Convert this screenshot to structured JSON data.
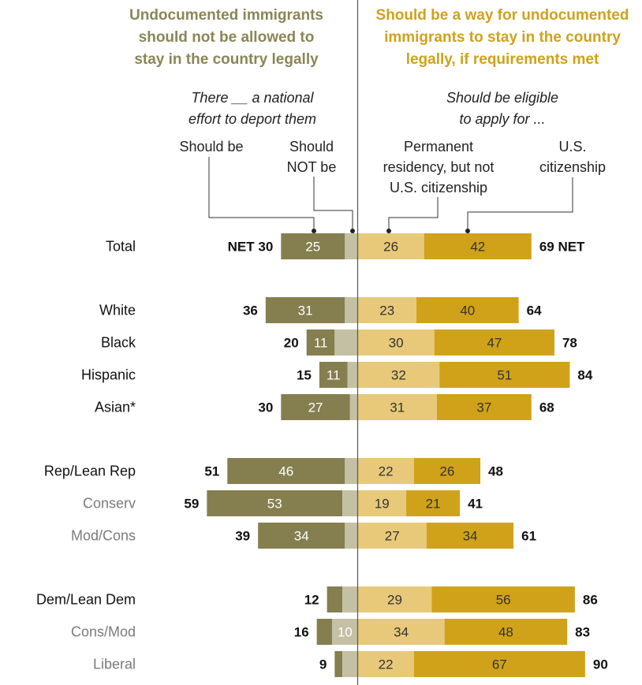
{
  "headers": {
    "left": [
      "Undocumented immigrants",
      "should not be allowed to",
      "stay in the country legally"
    ],
    "right": [
      "Should be a way for undocumented",
      "immigrants to stay in the country",
      "legally, if requirements met"
    ]
  },
  "subheaders": {
    "left": [
      "There __ a national",
      "effort to deport them"
    ],
    "right": [
      "Should be eligible",
      "to apply for ..."
    ]
  },
  "columns": {
    "should_be": [
      "Should be"
    ],
    "should_not_be": [
      "Should",
      "NOT be"
    ],
    "permanent": [
      "Permanent",
      "residency, but not",
      "U.S. citizenship"
    ],
    "citizenship": [
      "U.S.",
      "citizenship"
    ]
  },
  "colors": {
    "deport": "#857e4e",
    "not_deport": "#c4c0a4",
    "permanent": "#e7c979",
    "citizenship": "#cfa219",
    "header_left": "#8a8656",
    "header_right": "#cfa219",
    "sub_label": "#7b7b7b"
  },
  "chart_data": {
    "type": "bar",
    "orientation": "horizontal-diverging",
    "series": [
      {
        "name": "Should be",
        "side": "left"
      },
      {
        "name": "Should NOT be",
        "side": "left"
      },
      {
        "name": "Permanent residency, but not U.S. citizenship",
        "side": "right"
      },
      {
        "name": "U.S. citizenship",
        "side": "right"
      }
    ],
    "rows": [
      {
        "label": "Total",
        "style": "main",
        "deport": 25,
        "not_deport": 5,
        "permanent": 26,
        "citizenship": 42,
        "net_left": "NET 30",
        "net_right": "69 NET",
        "show_deport": true,
        "show_not_deport": false,
        "group": 0
      },
      {
        "label": "White",
        "style": "main",
        "deport": 31,
        "not_deport": 5,
        "permanent": 23,
        "citizenship": 40,
        "net_left": "36",
        "net_right": "64",
        "show_deport": true,
        "show_not_deport": false,
        "group": 1
      },
      {
        "label": "Black",
        "style": "main",
        "deport": 11,
        "not_deport": 9,
        "permanent": 30,
        "citizenship": 47,
        "net_left": "20",
        "net_right": "78",
        "show_deport": true,
        "show_not_deport": false,
        "group": 1
      },
      {
        "label": "Hispanic",
        "style": "main",
        "deport": 11,
        "not_deport": 4,
        "permanent": 32,
        "citizenship": 51,
        "net_left": "15",
        "net_right": "84",
        "show_deport": true,
        "show_not_deport": false,
        "group": 1
      },
      {
        "label": "Asian*",
        "style": "main",
        "deport": 27,
        "not_deport": 3,
        "permanent": 31,
        "citizenship": 37,
        "net_left": "30",
        "net_right": "68",
        "show_deport": true,
        "show_not_deport": false,
        "group": 1
      },
      {
        "label": "Rep/Lean Rep",
        "style": "main",
        "deport": 46,
        "not_deport": 5,
        "permanent": 22,
        "citizenship": 26,
        "net_left": "51",
        "net_right": "48",
        "show_deport": true,
        "show_not_deport": false,
        "group": 2
      },
      {
        "label": "Conserv",
        "style": "sub",
        "deport": 53,
        "not_deport": 6,
        "permanent": 19,
        "citizenship": 21,
        "net_left": "59",
        "net_right": "41",
        "show_deport": true,
        "show_not_deport": false,
        "group": 2
      },
      {
        "label": "Mod/Cons",
        "style": "sub",
        "deport": 34,
        "not_deport": 5,
        "permanent": 27,
        "citizenship": 34,
        "net_left": "39",
        "net_right": "61",
        "show_deport": true,
        "show_not_deport": false,
        "group": 2
      },
      {
        "label": "Dem/Lean Dem",
        "style": "main",
        "deport": 6,
        "not_deport": 6,
        "permanent": 29,
        "citizenship": 56,
        "net_left": "12",
        "net_right": "86",
        "show_deport": false,
        "show_not_deport": false,
        "group": 3
      },
      {
        "label": "Cons/Mod",
        "style": "sub",
        "deport": 6,
        "not_deport": 10,
        "permanent": 34,
        "citizenship": 48,
        "net_left": "16",
        "net_right": "83",
        "show_deport": false,
        "show_not_deport": true,
        "group": 3
      },
      {
        "label": "Liberal",
        "style": "sub",
        "deport": 3,
        "not_deport": 6,
        "permanent": 22,
        "citizenship": 67,
        "net_left": "9",
        "net_right": "90",
        "show_deport": false,
        "show_not_deport": false,
        "group": 3
      }
    ]
  }
}
